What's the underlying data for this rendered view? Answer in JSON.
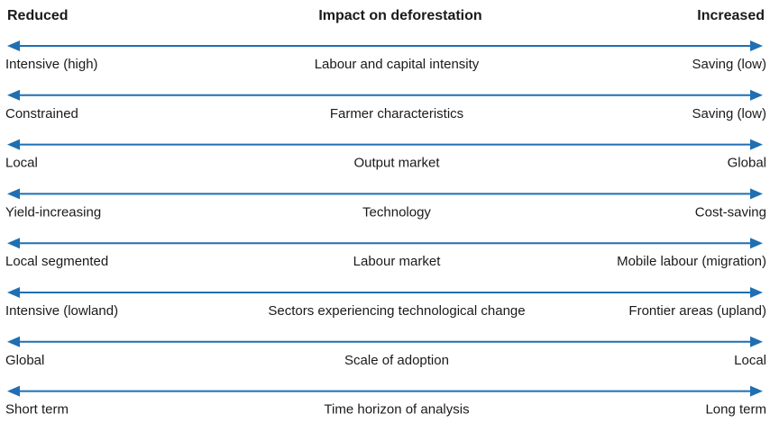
{
  "header": {
    "left": "Reduced",
    "title": "Impact on deforestation",
    "right": "Increased"
  },
  "rows": [
    {
      "left": "Intensive (high)",
      "center": "Labour and capital intensity",
      "right": "Saving (low)"
    },
    {
      "left": "Constrained",
      "center": "Farmer characteristics",
      "right": "Saving (low)"
    },
    {
      "left": "Local",
      "center": "Output market",
      "right": "Global"
    },
    {
      "left": "Yield-increasing",
      "center": "Technology",
      "right": "Cost-saving"
    },
    {
      "left": "Local segmented",
      "center": "Labour market",
      "right": "Mobile labour (migration)"
    },
    {
      "left": "Intensive (lowland)",
      "center": "Sectors experiencing technological change",
      "right": "Frontier areas (upland)"
    },
    {
      "left": "Global",
      "center": "Scale of adoption",
      "right": "Local"
    },
    {
      "left": "Short term",
      "center": "Time horizon of analysis",
      "right": "Long term"
    }
  ]
}
